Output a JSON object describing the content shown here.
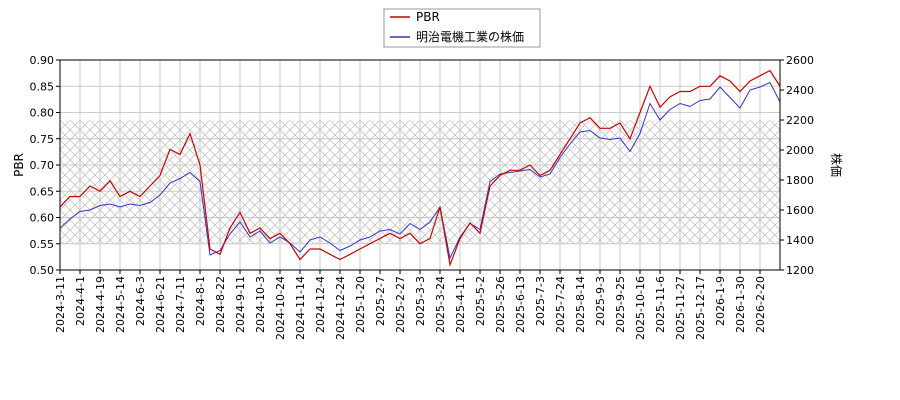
{
  "chart_data": {
    "type": "line",
    "legend_position": "top-center",
    "grid": true,
    "ylabel_left": "PBR",
    "ylabel_right": "株価",
    "ylim_left": [
      0.5,
      0.9
    ],
    "ylim_right": [
      1200,
      2600
    ],
    "yticks_left": [
      "0.50",
      "0.55",
      "0.60",
      "0.65",
      "0.70",
      "0.75",
      "0.80",
      "0.85",
      "0.90"
    ],
    "yticks_right": [
      "1200",
      "1400",
      "1600",
      "1800",
      "2000",
      "2200",
      "2400",
      "2600"
    ],
    "xticks": [
      "2024-3-11",
      "2024-4-1",
      "2024-4-19",
      "2024-5-14",
      "2024-6-3",
      "2024-6-21",
      "2024-7-11",
      "2024-8-1",
      "2024-8-22",
      "2024-9-11",
      "2024-10-3",
      "2024-10-24",
      "2024-11-14",
      "2024-12-4",
      "2024-12-24",
      "2025-1-20",
      "2025-2-7",
      "2025-2-27",
      "2025-3-3",
      "2025-3-24",
      "2025-4-11",
      "2025-5-2",
      "2025-5-26",
      "2025-6-13",
      "2025-7-3",
      "2025-7-24",
      "2025-8-14",
      "2025-9-3",
      "2025-9-25",
      "2025-10-16",
      "2025-11-6",
      "2025-11-27",
      "2025-12-17",
      "2026-1-9",
      "2026-1-30",
      "2026-2-20"
    ],
    "hatch_band_left": [
      0.55,
      0.785
    ],
    "series": [
      {
        "name": "PBR",
        "color": "#cc0000",
        "axis": "left",
        "values": [
          0.62,
          0.64,
          0.64,
          0.66,
          0.65,
          0.67,
          0.64,
          0.65,
          0.64,
          0.66,
          0.68,
          0.73,
          0.72,
          0.76,
          0.7,
          0.54,
          0.53,
          0.58,
          0.61,
          0.57,
          0.58,
          0.56,
          0.57,
          0.55,
          0.52,
          0.54,
          0.54,
          0.53,
          0.52,
          0.53,
          0.54,
          0.55,
          0.56,
          0.57,
          0.56,
          0.57,
          0.55,
          0.56,
          0.62,
          0.51,
          0.56,
          0.59,
          0.57,
          0.66,
          0.68,
          0.69,
          0.69,
          0.7,
          0.68,
          0.69,
          0.72,
          0.75,
          0.78,
          0.79,
          0.77,
          0.77,
          0.78,
          0.75,
          0.8,
          0.85,
          0.81,
          0.83,
          0.84,
          0.84,
          0.85,
          0.85,
          0.87,
          0.86,
          0.84,
          0.86,
          0.87,
          0.88,
          0.85
        ]
      },
      {
        "name": "明治電機工業の株価",
        "color": "#3333cc",
        "axis": "right",
        "values": [
          1480,
          1540,
          1590,
          1600,
          1630,
          1640,
          1620,
          1640,
          1630,
          1650,
          1700,
          1780,
          1810,
          1850,
          1790,
          1300,
          1330,
          1440,
          1520,
          1420,
          1460,
          1380,
          1420,
          1380,
          1320,
          1400,
          1420,
          1380,
          1330,
          1360,
          1400,
          1420,
          1460,
          1470,
          1440,
          1510,
          1470,
          1520,
          1620,
          1280,
          1420,
          1510,
          1470,
          1790,
          1840,
          1850,
          1860,
          1870,
          1820,
          1840,
          1950,
          2040,
          2120,
          2130,
          2080,
          2070,
          2080,
          1990,
          2110,
          2310,
          2200,
          2270,
          2310,
          2290,
          2330,
          2340,
          2420,
          2350,
          2280,
          2400,
          2420,
          2450,
          2320
        ]
      }
    ]
  }
}
